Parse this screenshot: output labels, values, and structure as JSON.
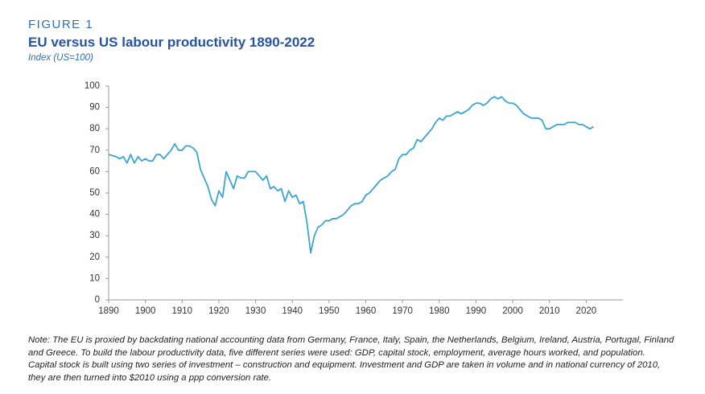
{
  "chart_data": {
    "type": "line",
    "figure_label": "FIGURE 1",
    "title": "EU versus US labour productivity 1890-2022",
    "subtitle": "Index (US=100)",
    "note": [
      "Note: The EU is proxied by backdating national accounting data from Germany, France, Italy, Spain, the Netherlands, Belgium, Ireland, Austria, Portugal, Finland",
      "and Greece. To build the labour productivity data, five different series were used: GDP, capital stock, employment, average hours worked, and population.",
      "Capital stock is built using two series of investment – construction and equipment. Investment and GDP are taken in volume and in national currency of 2010,",
      "they are then turned into $2010 using a ppp conversion rate."
    ],
    "x": [
      1890,
      1891,
      1892,
      1893,
      1894,
      1895,
      1896,
      1897,
      1898,
      1899,
      1900,
      1901,
      1902,
      1903,
      1904,
      1905,
      1906,
      1907,
      1908,
      1909,
      1910,
      1911,
      1912,
      1913,
      1914,
      1915,
      1916,
      1917,
      1918,
      1919,
      1920,
      1921,
      1922,
      1923,
      1924,
      1925,
      1926,
      1927,
      1928,
      1929,
      1930,
      1931,
      1932,
      1933,
      1934,
      1935,
      1936,
      1937,
      1938,
      1939,
      1940,
      1941,
      1942,
      1943,
      1944,
      1945,
      1946,
      1947,
      1948,
      1949,
      1950,
      1951,
      1952,
      1953,
      1954,
      1955,
      1956,
      1957,
      1958,
      1959,
      1960,
      1961,
      1962,
      1963,
      1964,
      1965,
      1966,
      1967,
      1968,
      1969,
      1970,
      1971,
      1972,
      1973,
      1974,
      1975,
      1976,
      1977,
      1978,
      1979,
      1980,
      1981,
      1982,
      1983,
      1984,
      1985,
      1986,
      1987,
      1988,
      1989,
      1990,
      1991,
      1992,
      1993,
      1994,
      1995,
      1996,
      1997,
      1998,
      1999,
      2000,
      2001,
      2002,
      2003,
      2004,
      2005,
      2006,
      2007,
      2008,
      2009,
      2010,
      2011,
      2012,
      2013,
      2014,
      2015,
      2016,
      2017,
      2018,
      2019,
      2020,
      2021,
      2022
    ],
    "series": [
      {
        "color": "#3aa6d0",
        "values": [
          68,
          67.5,
          67,
          66,
          67,
          64,
          68,
          64,
          67,
          65,
          66,
          65,
          65,
          68,
          68,
          66,
          68,
          70,
          73,
          70,
          70,
          72,
          72,
          71,
          69,
          61,
          57,
          53,
          47,
          44,
          51,
          48,
          60,
          56,
          52,
          58,
          57,
          57,
          60,
          60,
          60,
          58,
          56,
          58,
          52,
          53,
          51,
          52,
          46,
          51,
          48,
          49,
          45,
          46,
          36,
          22,
          30,
          34,
          35,
          37,
          37,
          38,
          38,
          39,
          40,
          42,
          44,
          45,
          45,
          46,
          49,
          50,
          52,
          54,
          56,
          57,
          58,
          60,
          61,
          66,
          68,
          68,
          70,
          71,
          75,
          74,
          76,
          78,
          80,
          83,
          85,
          84,
          86,
          86,
          87,
          88,
          87,
          88,
          89,
          91,
          92,
          92,
          91,
          92,
          94,
          95,
          94,
          95,
          93,
          92,
          92,
          91,
          89,
          87,
          86,
          85,
          85,
          85,
          84,
          80,
          80,
          81,
          82,
          82,
          82,
          83,
          83,
          83,
          82,
          82,
          81,
          80,
          81
        ]
      }
    ],
    "xlim": [
      1890,
      2030
    ],
    "ylim": [
      0,
      100
    ],
    "xticks": [
      1890,
      1900,
      1910,
      1920,
      1930,
      1940,
      1950,
      1960,
      1970,
      1980,
      1990,
      2000,
      2010,
      2020
    ],
    "yticks": [
      0,
      10,
      20,
      30,
      40,
      50,
      60,
      70,
      80,
      90,
      100
    ]
  }
}
